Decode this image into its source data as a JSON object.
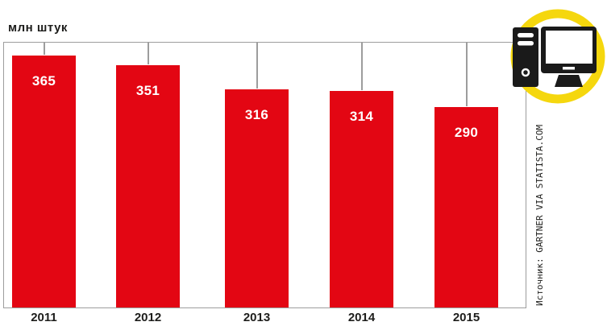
{
  "title": "млн штук",
  "source_label": "Источник: GARTNER VIA STATISTA.COM",
  "colors": {
    "bar": "#e30613",
    "grid": "#9d9d9d",
    "ink": "#1d1d1b",
    "value_label": "#ffffff",
    "icon_ring": "#f5d70e",
    "icon_glyph": "#1a1a1a"
  },
  "icon": {
    "name": "desktop-computer-icon"
  },
  "chart_data": {
    "type": "bar",
    "categories": [
      "2011",
      "2012",
      "2013",
      "2014",
      "2015"
    ],
    "values": [
      365,
      351,
      316,
      314,
      290
    ],
    "title": "млн штук",
    "xlabel": "",
    "ylabel": "млн штук",
    "ylim": [
      0,
      400
    ],
    "grid": false,
    "legend": false,
    "bar_color": "#e30613",
    "value_label_position": "inside-top",
    "connector_stems_from_top_frame": true
  }
}
